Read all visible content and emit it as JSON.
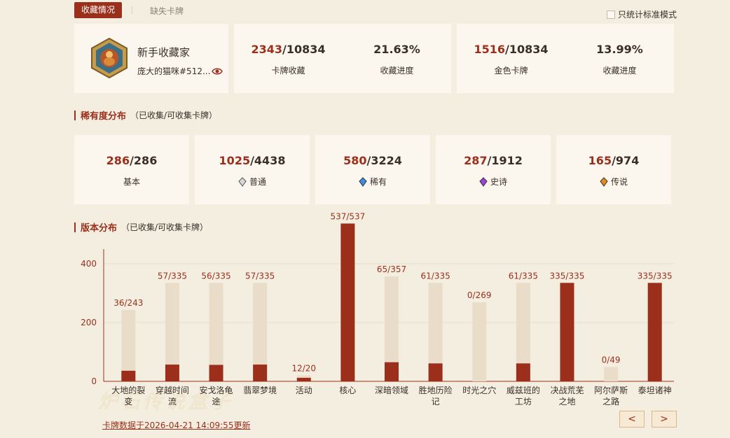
{
  "tabs": {
    "active": "收藏情况",
    "inactive": "缺失卡牌"
  },
  "std_mode_label": "只统计标准模式",
  "profile": {
    "title": "新手收藏家",
    "user": "庞大的猫咪#512..."
  },
  "stats": [
    {
      "owned": "2343",
      "total": "/10834",
      "label": "卡牌收藏"
    },
    {
      "pct": "21.63%",
      "label": "收藏进度"
    },
    {
      "owned": "1516",
      "total": "/10834",
      "label": "金色卡牌"
    },
    {
      "pct": "13.99%",
      "label": "收藏进度"
    }
  ],
  "rarity_section": {
    "title": "稀有度分布",
    "sub": "（已收集/可收集卡牌）"
  },
  "rarity": [
    {
      "owned": "286",
      "total": "/286",
      "label": "基本",
      "gem": "none"
    },
    {
      "owned": "1025",
      "total": "/4438",
      "label": "普通",
      "gem": "common-gem-icon",
      "color": "#bdbdbd"
    },
    {
      "owned": "580",
      "total": "/3224",
      "label": "稀有",
      "gem": "rare-gem-icon",
      "color": "#3a8ee6"
    },
    {
      "owned": "287",
      "total": "/1912",
      "label": "史诗",
      "gem": "epic-gem-icon",
      "color": "#a040d8"
    },
    {
      "owned": "165",
      "total": "/974",
      "label": "传说",
      "gem": "legendary-gem-icon",
      "color": "#e88a1a"
    }
  ],
  "set_section": {
    "title": "版本分布",
    "sub": "（已收集/可收集卡牌）"
  },
  "chart_data": {
    "type": "bar",
    "categories": [
      [
        "大地的裂",
        "变"
      ],
      [
        "穿越时间",
        "流"
      ],
      [
        "安戈洛龟",
        "途"
      ],
      [
        "翡翠梦境"
      ],
      [
        "活动"
      ],
      [
        "核心"
      ],
      [
        "深暗领域"
      ],
      [
        "胜地历险",
        "记"
      ],
      [
        "时光之穴"
      ],
      [
        "威兹班的",
        "工坊"
      ],
      [
        "决战荒芜",
        "之地"
      ],
      [
        "阿尔萨斯",
        "之路"
      ],
      [
        "泰坦诸神"
      ]
    ],
    "series": [
      {
        "name": "已收集",
        "values": [
          36,
          57,
          56,
          57,
          12,
          537,
          65,
          61,
          0,
          61,
          335,
          0,
          335
        ]
      },
      {
        "name": "可收集",
        "values": [
          243,
          335,
          335,
          335,
          20,
          537,
          357,
          335,
          269,
          335,
          335,
          49,
          335
        ]
      }
    ],
    "data_labels": [
      "36/243",
      "57/335",
      "56/335",
      "57/335",
      "12/20",
      "537/537",
      "65/357",
      "61/335",
      "0/269",
      "61/335",
      "335/335",
      "0/49",
      "335/335"
    ],
    "yticks": [
      "0",
      "200",
      "400"
    ],
    "ylim": [
      0,
      450
    ],
    "grid": true,
    "colors": {
      "owned": "#9b2f1b",
      "total": "#e9ddc9"
    }
  },
  "footer": {
    "updated": "卡牌数据于2026-04-21 14:09:55更新",
    "watermark": "炉石传说盒子"
  },
  "pager": {
    "prev": "<",
    "next": ">"
  }
}
